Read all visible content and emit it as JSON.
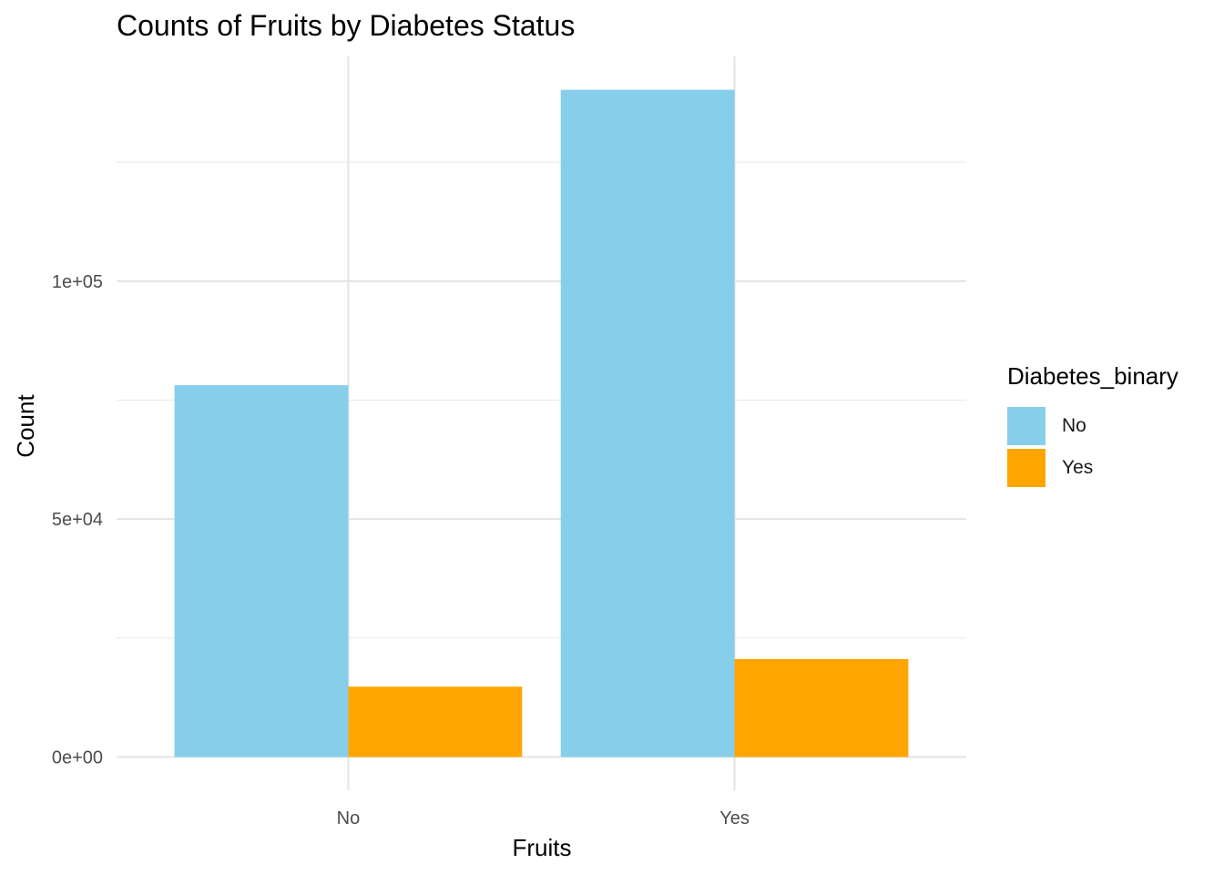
{
  "chart_data": {
    "type": "bar",
    "title": "Counts of Fruits by Diabetes Status",
    "xlabel": "Fruits",
    "ylabel": "Count",
    "categories": [
      "No",
      "Yes"
    ],
    "series": [
      {
        "name": "No",
        "color": "#87CEEB",
        "values": [
          78129,
          140205
        ]
      },
      {
        "name": "Yes",
        "color": "#FFA500",
        "values": [
          14780,
          20566
        ]
      }
    ],
    "ylim": [
      -6984,
      147209
    ],
    "yticks": [
      0,
      50000,
      100000
    ],
    "ytick_labels": [
      "0e+00",
      "5e+04",
      "1e+05"
    ],
    "grid": true,
    "legend": {
      "title": "Diabetes_binary",
      "position": "right"
    }
  }
}
